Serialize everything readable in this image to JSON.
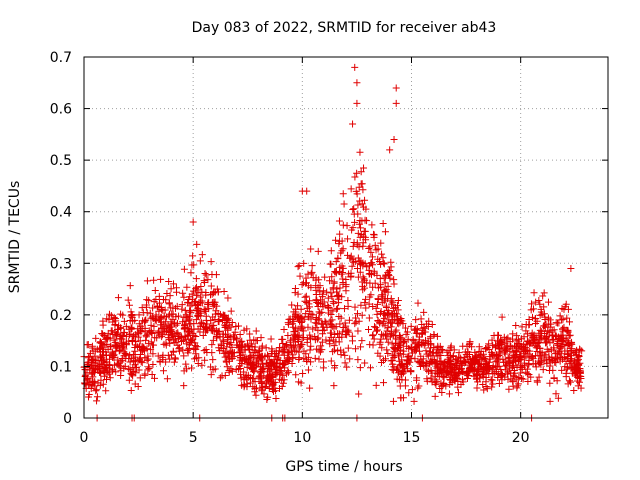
{
  "chart_data": {
    "type": "scatter",
    "title": "Day 083 of 2022, SRMTID for receiver ab43",
    "xlabel": "GPS time / hours",
    "ylabel": "SRMTID / TECUs",
    "xlim": [
      0,
      24
    ],
    "ylim": [
      0,
      0.7
    ],
    "x_ticks": [
      0,
      5,
      10,
      15,
      20
    ],
    "y_ticks": [
      0,
      0.1,
      0.2,
      0.3,
      0.4,
      0.5,
      0.6,
      0.7
    ],
    "x_tick_labels": [
      "0",
      "5",
      "10",
      "15",
      "20"
    ],
    "y_tick_labels": [
      "0",
      "0.1",
      "0.2",
      "0.3",
      "0.4",
      "0.5",
      "0.6",
      "0.7"
    ],
    "grid": true,
    "marker": "+",
    "color": "#e00000",
    "envelope": {
      "hours": [
        0.0,
        0.5,
        1.0,
        1.5,
        2.0,
        2.5,
        3.0,
        3.5,
        4.0,
        4.5,
        5.0,
        5.5,
        6.0,
        6.5,
        7.0,
        7.5,
        8.0,
        8.5,
        9.0,
        9.5,
        10.0,
        10.5,
        11.0,
        11.5,
        12.0,
        12.5,
        13.0,
        13.5,
        14.0,
        14.5,
        15.0,
        15.5,
        16.0,
        16.5,
        17.0,
        17.5,
        18.0,
        18.5,
        19.0,
        19.5,
        20.0,
        20.5,
        21.0,
        21.5,
        22.0,
        22.5,
        22.8
      ],
      "median": [
        0.08,
        0.1,
        0.13,
        0.15,
        0.15,
        0.14,
        0.17,
        0.18,
        0.17,
        0.16,
        0.19,
        0.2,
        0.19,
        0.15,
        0.13,
        0.11,
        0.1,
        0.09,
        0.1,
        0.13,
        0.19,
        0.2,
        0.18,
        0.22,
        0.27,
        0.3,
        0.26,
        0.22,
        0.2,
        0.12,
        0.12,
        0.15,
        0.12,
        0.1,
        0.1,
        0.1,
        0.1,
        0.1,
        0.12,
        0.12,
        0.12,
        0.15,
        0.16,
        0.13,
        0.15,
        0.1,
        0.1
      ],
      "spread": [
        0.03,
        0.04,
        0.05,
        0.05,
        0.05,
        0.05,
        0.06,
        0.06,
        0.06,
        0.06,
        0.08,
        0.08,
        0.07,
        0.05,
        0.04,
        0.04,
        0.04,
        0.03,
        0.04,
        0.05,
        0.09,
        0.08,
        0.07,
        0.1,
        0.14,
        0.15,
        0.12,
        0.1,
        0.1,
        0.05,
        0.05,
        0.05,
        0.04,
        0.03,
        0.03,
        0.03,
        0.03,
        0.03,
        0.04,
        0.04,
        0.04,
        0.05,
        0.06,
        0.05,
        0.06,
        0.03,
        0.03
      ]
    },
    "notable_points": [
      {
        "x": 12.4,
        "y": 0.68
      },
      {
        "x": 12.5,
        "y": 0.65
      },
      {
        "x": 12.5,
        "y": 0.61
      },
      {
        "x": 12.3,
        "y": 0.57
      },
      {
        "x": 14.3,
        "y": 0.64
      },
      {
        "x": 14.3,
        "y": 0.61
      },
      {
        "x": 14.2,
        "y": 0.54
      },
      {
        "x": 14.0,
        "y": 0.52
      },
      {
        "x": 10.0,
        "y": 0.44
      },
      {
        "x": 10.2,
        "y": 0.44
      },
      {
        "x": 5.0,
        "y": 0.38
      },
      {
        "x": 22.3,
        "y": 0.29
      }
    ],
    "zero_points_x": [
      0.6,
      2.2,
      2.3,
      5.3,
      8.6,
      9.1,
      9.2,
      12.5,
      15.5,
      20.5
    ]
  }
}
